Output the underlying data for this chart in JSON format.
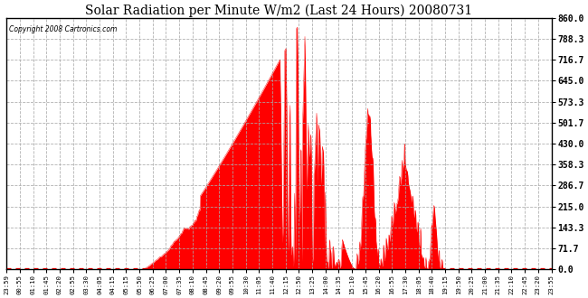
{
  "title": "Solar Radiation per Minute W/m2 (Last 24 Hours) 20080731",
  "copyright": "Copyright 2008 Cartronics.com",
  "fill_color": "#ff0000",
  "line_color": "#ff0000",
  "dashed_line_color": "#ff0000",
  "background_color": "#ffffff",
  "grid_color": "#aaaaaa",
  "yticks": [
    0.0,
    71.7,
    143.3,
    215.0,
    286.7,
    358.3,
    430.0,
    501.7,
    573.3,
    645.0,
    716.7,
    788.3,
    860.0
  ],
  "ymin": 0.0,
  "ymax": 860.0,
  "xtick_labels": [
    "23:59",
    "00:55",
    "01:10",
    "01:45",
    "02:20",
    "02:55",
    "03:30",
    "04:05",
    "04:15",
    "05:15",
    "05:50",
    "06:25",
    "07:00",
    "07:35",
    "08:10",
    "08:45",
    "09:20",
    "09:55",
    "10:30",
    "11:05",
    "11:40",
    "12:15",
    "12:50",
    "13:25",
    "14:00",
    "14:35",
    "15:10",
    "15:45",
    "16:20",
    "16:55",
    "17:30",
    "18:05",
    "18:40",
    "19:15",
    "19:50",
    "20:25",
    "21:00",
    "21:35",
    "22:10",
    "22:45",
    "23:20",
    "23:55"
  ],
  "num_points": 1440
}
